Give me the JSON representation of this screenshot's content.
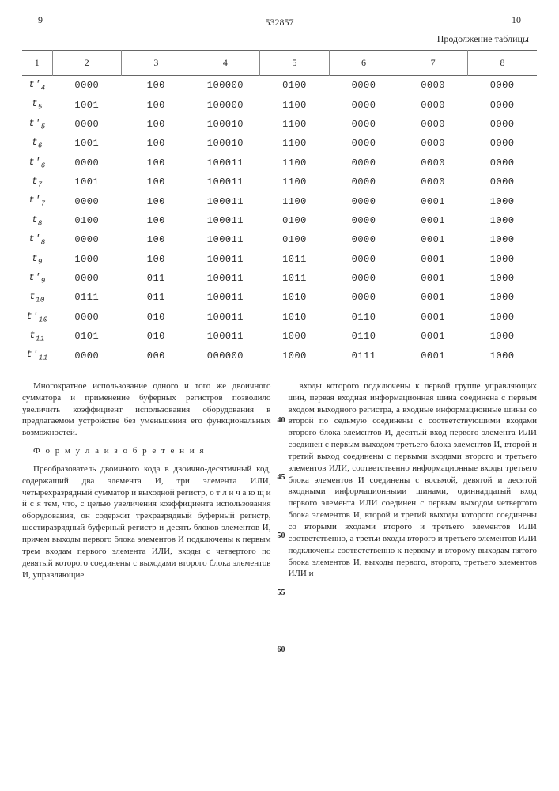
{
  "header": {
    "left_page": "9",
    "right_page": "10",
    "patent_no": "532857",
    "continuation": "Продолжение таблицы"
  },
  "table": {
    "columns": [
      "1",
      "2",
      "3",
      "4",
      "5",
      "6",
      "7",
      "8"
    ],
    "rows": [
      {
        "label_sym": "t'",
        "label_idx": "4",
        "c": [
          "0000",
          "100",
          "100000",
          "0100",
          "0000",
          "0000",
          "0000"
        ]
      },
      {
        "label_sym": "t",
        "label_idx": "5",
        "c": [
          "1001",
          "100",
          "100000",
          "1100",
          "0000",
          "0000",
          "0000"
        ]
      },
      {
        "label_sym": "t'",
        "label_idx": "5",
        "c": [
          "0000",
          "100",
          "100010",
          "1100",
          "0000",
          "0000",
          "0000"
        ]
      },
      {
        "label_sym": "t",
        "label_idx": "6",
        "c": [
          "1001",
          "100",
          "100010",
          "1100",
          "0000",
          "0000",
          "0000"
        ]
      },
      {
        "label_sym": "t'",
        "label_idx": "6",
        "c": [
          "0000",
          "100",
          "100011",
          "1100",
          "0000",
          "0000",
          "0000"
        ]
      },
      {
        "label_sym": "t",
        "label_idx": "7",
        "c": [
          "1001",
          "100",
          "100011",
          "1100",
          "0000",
          "0000",
          "0000"
        ]
      },
      {
        "label_sym": "t'",
        "label_idx": "7",
        "c": [
          "0000",
          "100",
          "100011",
          "1100",
          "0000",
          "0001",
          "1000"
        ]
      },
      {
        "label_sym": "t",
        "label_idx": "8",
        "c": [
          "0100",
          "100",
          "100011",
          "0100",
          "0000",
          "0001",
          "1000"
        ]
      },
      {
        "label_sym": "t'",
        "label_idx": "8",
        "c": [
          "0000",
          "100",
          "100011",
          "0100",
          "0000",
          "0001",
          "1000"
        ]
      },
      {
        "label_sym": "t",
        "label_idx": "9",
        "c": [
          "1000",
          "100",
          "100011",
          "1011",
          "0000",
          "0001",
          "1000"
        ]
      },
      {
        "label_sym": "t'",
        "label_idx": "9",
        "c": [
          "0000",
          "011",
          "100011",
          "1011",
          "0000",
          "0001",
          "1000"
        ]
      },
      {
        "label_sym": "t",
        "label_idx": "10",
        "c": [
          "0111",
          "011",
          "100011",
          "1010",
          "0000",
          "0001",
          "1000"
        ]
      },
      {
        "label_sym": "t'",
        "label_idx": "10",
        "c": [
          "0000",
          "010",
          "100011",
          "1010",
          "0110",
          "0001",
          "1000"
        ]
      },
      {
        "label_sym": "t",
        "label_idx": "11",
        "c": [
          "0101",
          "010",
          "100011",
          "1000",
          "0110",
          "0001",
          "1000"
        ]
      },
      {
        "label_sym": "t'",
        "label_idx": "11",
        "c": [
          "0000",
          "000",
          "000000",
          "1000",
          "0111",
          "0001",
          "1000"
        ]
      }
    ]
  },
  "text": {
    "left_p1": "Многократное использование одного и того же двоичного сумматора и применение буферных регистров позволило увеличить коэффициент использования оборудования в предлагаемом устройстве без уменьшения его функциональных возможностей.",
    "formula_heading": "Ф о р м у л а   и з о б р е т е н и я",
    "left_p2": "Преобразователь двоичного кода в двоично-десятичный код, содержащий два элемента И, три элемента ИЛИ, четырехразрядный сумматор и выходной регистр, о т л и ч а ю щ и й с я тем, что, с целью увеличения коэффициента использования оборудования, он содержит трехразрядный буферный регистр, шестиразрядный буферный регистр и десять блоков элементов И, причем выходы первого блока элементов И подключены к первым трем входам первого элемента ИЛИ, входы с четвертого по девятый которого соединены с выходами второго блока элементов И, управляющие",
    "right_p1": "входы которого подключены к первой группе управляющих шин, первая входная информационная шина соединена с первым входом выходного регистра, а входные информационные шины со второй по седьмую соединены с соответствующими входами второго блока элементов И, десятый вход первого элемента ИЛИ соединен с первым выходом третьего блока элементов И, второй и третий выход соединены с первыми входами второго и третьего элементов ИЛИ, соответственно информационные входы третьего блока элементов И соединены с восьмой, девятой и десятой входными информационными шинами, одиннадцатый вход первого элемента ИЛИ соединен с первым выходом четвертого блока элементов И, второй и третий выходы которого соединены со вторыми входами второго и третьего элементов ИЛИ соответственно, а третьи входы второго и третьего элементов ИЛИ подключены соответственно к первому и второму выходам пятого блока элементов И, выходы первого, второго, третьего элементов ИЛИ и",
    "line_40": "40",
    "line_45": "45",
    "line_50": "50",
    "line_55": "55",
    "line_60": "60"
  }
}
